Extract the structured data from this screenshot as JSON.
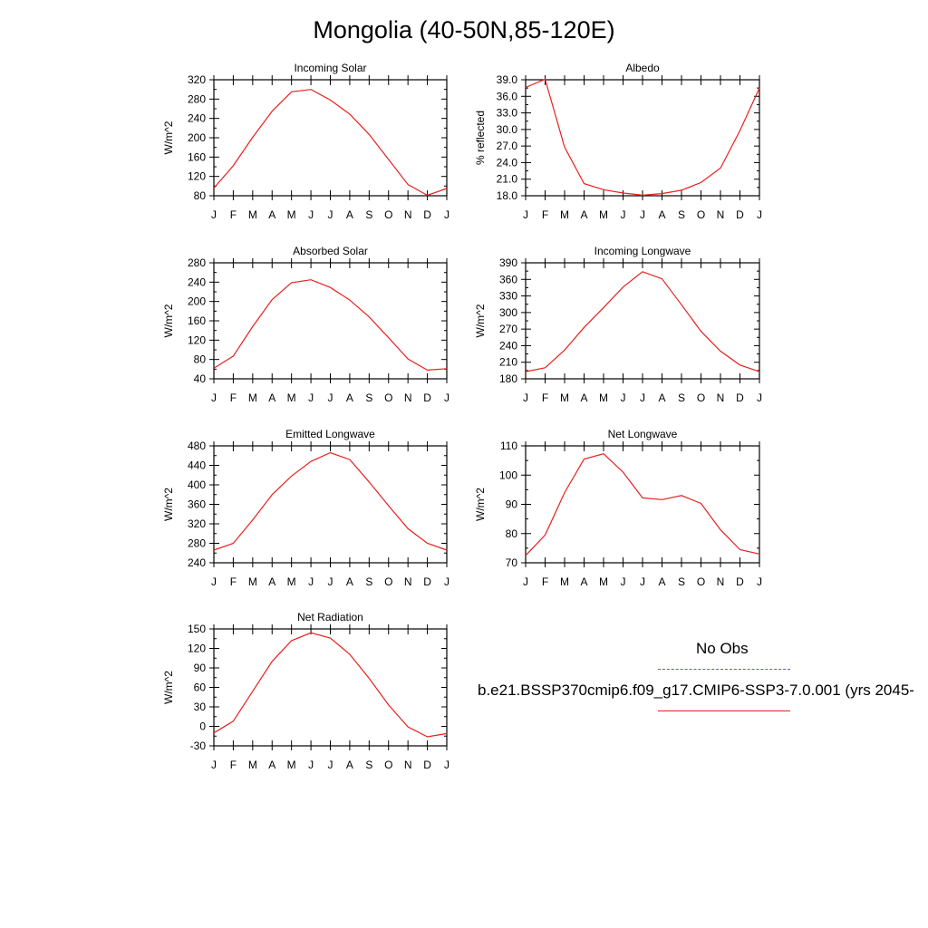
{
  "title": "Mongolia (40-50N,85-120E)",
  "legend": {
    "obs_label": "No Obs",
    "obs_color": "#5b5bd6",
    "model_label": "b.e21.BSSP370cmip6.f09_g17.CMIP6-SSP3-7.0.001 (yrs 2045-",
    "model_color": "#e8201c"
  },
  "chart_data": [
    {
      "type": "line",
      "title": "Incoming Solar",
      "ylabel": "W/m^2",
      "categories": [
        "J",
        "F",
        "M",
        "A",
        "M",
        "J",
        "J",
        "A",
        "S",
        "O",
        "N",
        "D",
        "J"
      ],
      "ylim": [
        80,
        320
      ],
      "yticks": [
        80,
        120,
        160,
        200,
        240,
        280,
        320
      ],
      "yticklabels": [
        "80",
        "120",
        "160",
        "200",
        "240",
        "280",
        "320"
      ],
      "series": [
        {
          "values": [
            96,
            142,
            201,
            255,
            295,
            300,
            278,
            249,
            207,
            155,
            103,
            81,
            95
          ]
        }
      ]
    },
    {
      "type": "line",
      "title": "Albedo",
      "ylabel": "% reflected",
      "categories": [
        "J",
        "F",
        "M",
        "A",
        "M",
        "J",
        "J",
        "A",
        "S",
        "O",
        "N",
        "D",
        "J"
      ],
      "ylim": [
        18,
        39
      ],
      "yticks": [
        18,
        21,
        24,
        27,
        30,
        33,
        36,
        39
      ],
      "yticklabels": [
        "18.0",
        "21.0",
        "24.0",
        "27.0",
        "30.0",
        "33.0",
        "36.0",
        "39.0"
      ],
      "series": [
        {
          "values": [
            37.6,
            39.1,
            26.8,
            20.2,
            19.1,
            18.5,
            18.1,
            18.4,
            19.0,
            20.4,
            23.0,
            29.8,
            37.5
          ]
        }
      ]
    },
    {
      "type": "line",
      "title": "Absorbed Solar",
      "ylabel": "W/m^2",
      "categories": [
        "J",
        "F",
        "M",
        "A",
        "M",
        "J",
        "J",
        "A",
        "S",
        "O",
        "N",
        "D",
        "J"
      ],
      "ylim": [
        40,
        280
      ],
      "yticks": [
        40,
        80,
        120,
        160,
        200,
        240,
        280
      ],
      "yticklabels": [
        "40",
        "80",
        "120",
        "160",
        "200",
        "240",
        "280"
      ],
      "series": [
        {
          "values": [
            62,
            87,
            148,
            204,
            239,
            245,
            229,
            203,
            168,
            125,
            81,
            58,
            61
          ]
        }
      ]
    },
    {
      "type": "line",
      "title": "Incoming Longwave",
      "ylabel": "W/m^2",
      "categories": [
        "J",
        "F",
        "M",
        "A",
        "M",
        "J",
        "J",
        "A",
        "S",
        "O",
        "N",
        "D",
        "J"
      ],
      "ylim": [
        180,
        390
      ],
      "yticks": [
        180,
        210,
        240,
        270,
        300,
        330,
        360,
        390
      ],
      "yticklabels": [
        "180",
        "210",
        "240",
        "270",
        "300",
        "330",
        "360",
        "390"
      ],
      "series": [
        {
          "values": [
            193,
            200,
            232,
            273,
            309,
            346,
            374,
            361,
            314,
            266,
            230,
            205,
            193
          ]
        }
      ]
    },
    {
      "type": "line",
      "title": "Emitted Longwave",
      "ylabel": "W/m^2",
      "categories": [
        "J",
        "F",
        "M",
        "A",
        "M",
        "J",
        "J",
        "A",
        "S",
        "O",
        "N",
        "D",
        "J"
      ],
      "ylim": [
        240,
        480
      ],
      "yticks": [
        240,
        280,
        320,
        360,
        400,
        440,
        480
      ],
      "yticklabels": [
        "240",
        "280",
        "320",
        "360",
        "400",
        "440",
        "480"
      ],
      "series": [
        {
          "values": [
            266,
            280,
            328,
            380,
            418,
            448,
            466,
            452,
            406,
            357,
            310,
            280,
            266
          ]
        }
      ]
    },
    {
      "type": "line",
      "title": "Net Longwave",
      "ylabel": "W/m^2",
      "categories": [
        "J",
        "F",
        "M",
        "A",
        "M",
        "J",
        "J",
        "A",
        "S",
        "O",
        "N",
        "D",
        "J"
      ],
      "ylim": [
        70,
        110
      ],
      "yticks": [
        70,
        80,
        90,
        100,
        110
      ],
      "yticklabels": [
        "70",
        "80",
        "90",
        "100",
        "110"
      ],
      "series": [
        {
          "values": [
            72.5,
            79.5,
            94.0,
            105.5,
            107.3,
            101.0,
            92.2,
            91.6,
            93.0,
            90.3,
            81.3,
            74.5,
            73.0
          ]
        }
      ]
    },
    {
      "type": "line",
      "title": "Net Radiation",
      "ylabel": "W/m^2",
      "categories": [
        "J",
        "F",
        "M",
        "A",
        "M",
        "J",
        "J",
        "A",
        "S",
        "O",
        "N",
        "D",
        "J"
      ],
      "ylim": [
        -30,
        150
      ],
      "yticks": [
        -30,
        0,
        30,
        60,
        90,
        120,
        150
      ],
      "yticklabels": [
        "-30",
        "0",
        "30",
        "60",
        "90",
        "120",
        "150"
      ],
      "series": [
        {
          "values": [
            -10,
            8,
            54,
            100,
            132,
            144,
            136,
            111,
            74,
            33,
            -1,
            -16,
            -11
          ]
        }
      ]
    }
  ]
}
